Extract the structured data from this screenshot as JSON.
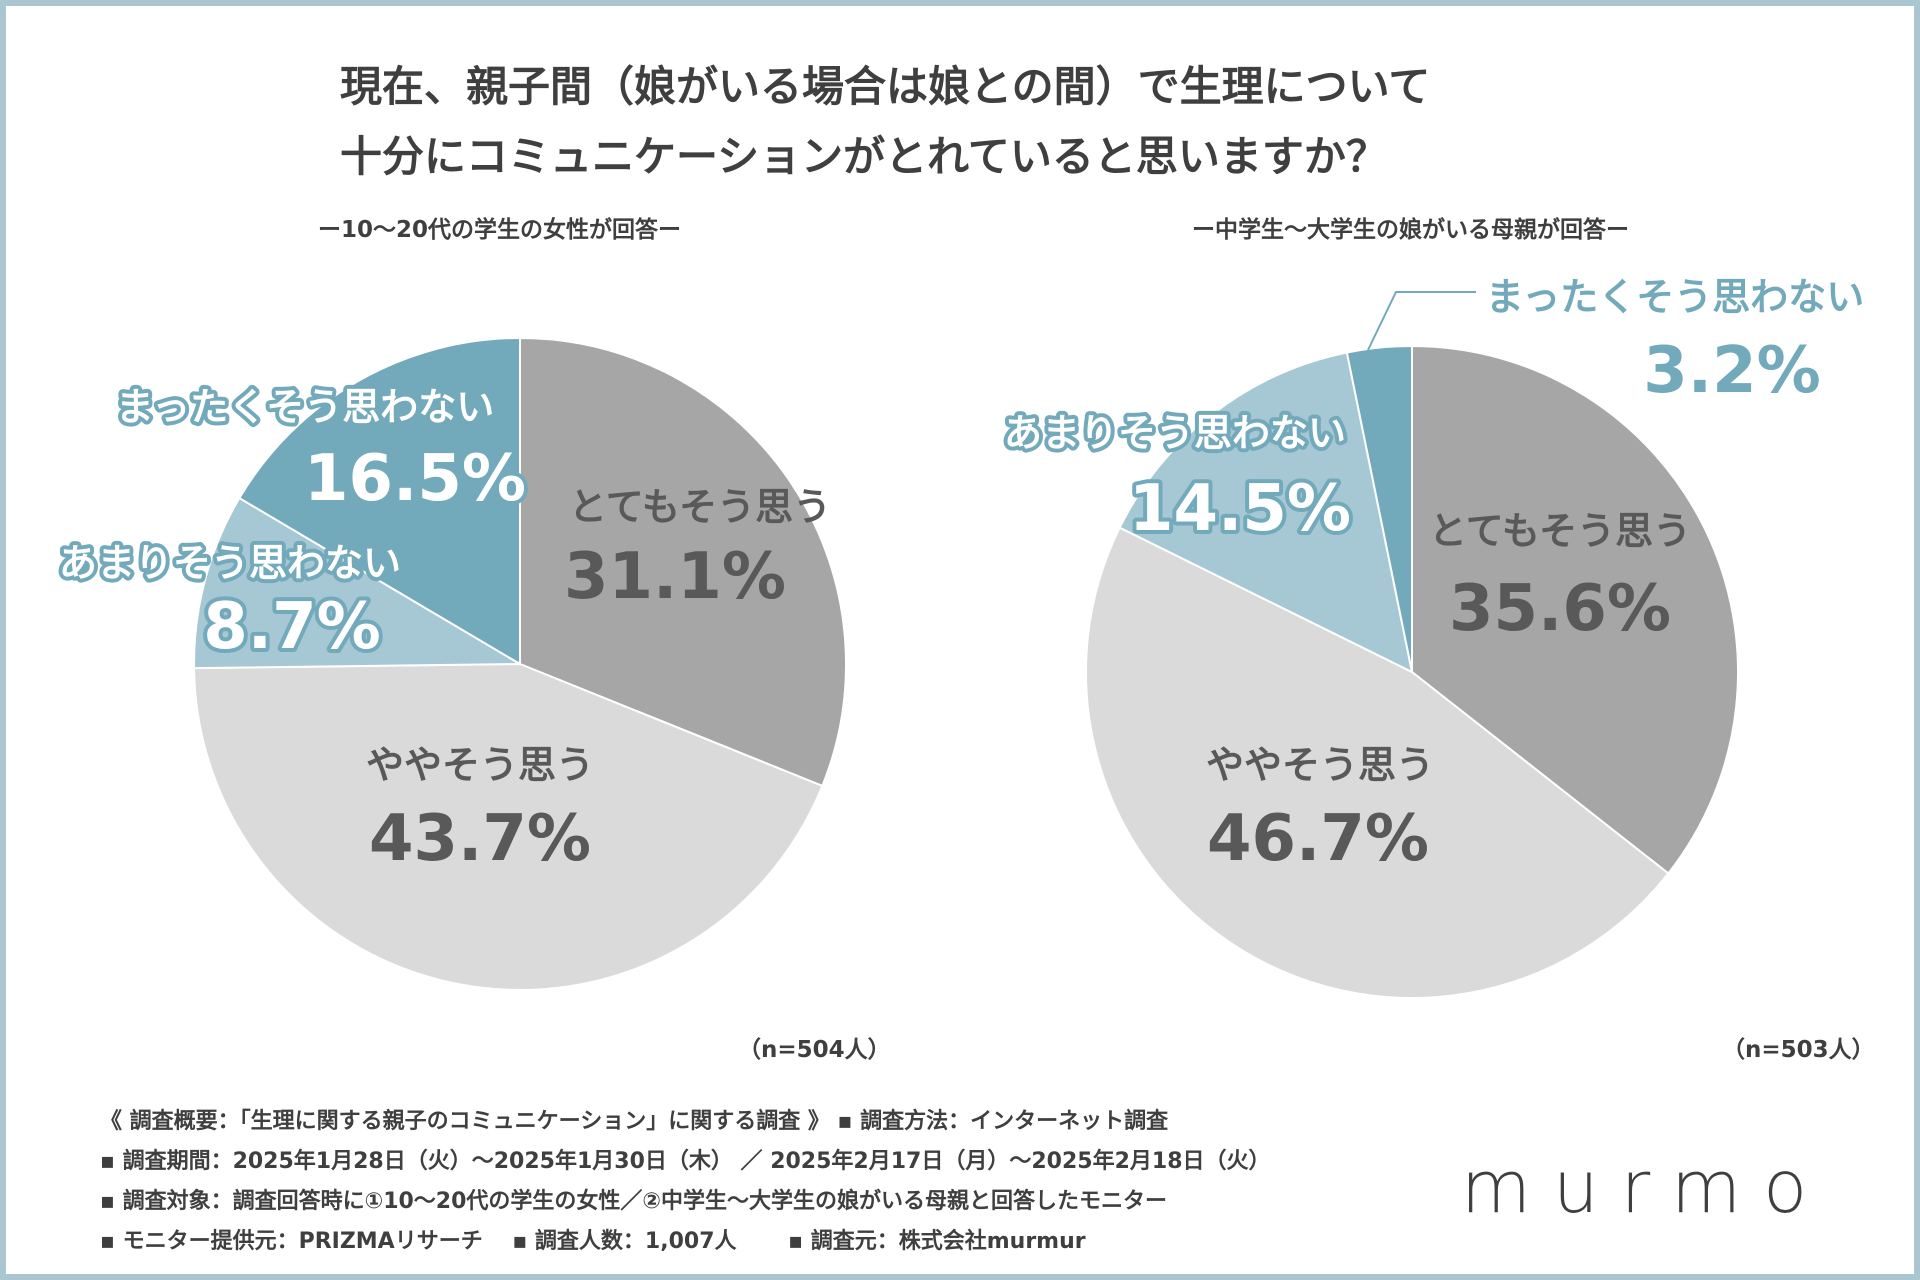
{
  "title_line1": "現在、親子間（娘がいる場合は娘との間）で生理について",
  "title_line2": "十分にコミュニケーションがとれていると思いますか？",
  "chart_data": [
    {
      "type": "pie",
      "subtitle": "ー10〜20代の学生の女性が回答ー",
      "n_label": "（n=504人）",
      "slices": [
        {
          "label": "とてもそう思う",
          "value": 31.1,
          "value_text": "31.1%",
          "color": "#a6a6a6"
        },
        {
          "label": "ややそう思う",
          "value": 43.7,
          "value_text": "43.7%",
          "color": "#dadada"
        },
        {
          "label": "あまりそう思わない",
          "value": 8.7,
          "value_text": "8.7%",
          "color": "#a6c8d4"
        },
        {
          "label": "まったくそう思わない",
          "value": 16.5,
          "value_text": "16.5%",
          "color": "#72a9bb"
        }
      ]
    },
    {
      "type": "pie",
      "subtitle": "ー中学生〜大学生の娘がいる母親が回答ー",
      "n_label": "（n=503人）",
      "slices": [
        {
          "label": "とてもそう思う",
          "value": 35.6,
          "value_text": "35.6%",
          "color": "#a6a6a6"
        },
        {
          "label": "ややそう思う",
          "value": 46.7,
          "value_text": "46.7%",
          "color": "#dadada"
        },
        {
          "label": "あまりそう思わない",
          "value": 14.5,
          "value_text": "14.5%",
          "color": "#a6c8d4"
        },
        {
          "label": "まったくそう思わない",
          "value": 3.2,
          "value_text": "3.2%",
          "color": "#72a9bb"
        }
      ]
    }
  ],
  "footer": {
    "line1": "《 調査概要：「生理に関する親子のコミュニケーション」に関する調査 》 ▪ 調査方法：インターネット調査",
    "line2": "▪ 調査期間：2025年1月28日（火）〜2025年1月30日（木） ／ 2025年2月17日（月）〜2025年2月18日（火）",
    "line3": "▪ 調査対象：調査回答時に①10〜20代の学生の女性／②中学生〜大学生の娘がいる母親と回答したモニター",
    "line4": "▪ モニター提供元：PRIZMAリサーチ　 ▪ 調査人数：1,007人　　 ▪ 調査元：株式会社murmur"
  },
  "logo_text": "murmo",
  "colors": {
    "dark_text": "#3f3f3f",
    "gray_label": "#595959",
    "blue_label": "#72a9bb",
    "frame": "#a9c6d1"
  }
}
